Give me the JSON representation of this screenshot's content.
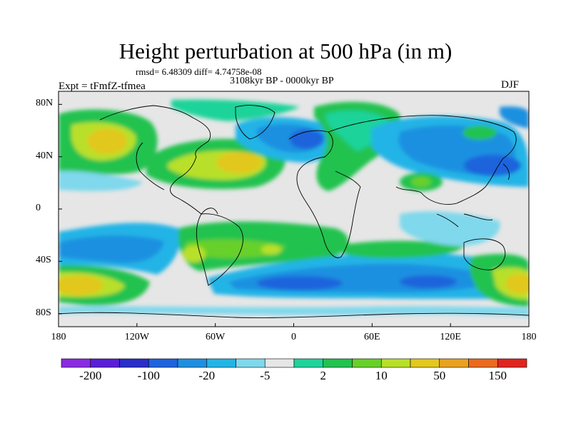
{
  "title": "Height perturbation at 500 hPa (in m)",
  "stats": "rmsd= 6.48309 diff= 4.74758e-08",
  "subtitle": "3108kyr BP - 0000kyr BP",
  "left_label": "Expt = tFmfZ-tfmea",
  "right_label": "DJF",
  "lat_axis": {
    "labels": [
      "80N",
      "40N",
      "0",
      "40S",
      "80S"
    ],
    "values": [
      80,
      40,
      0,
      -40,
      -80
    ]
  },
  "lon_axis": {
    "labels": [
      "180",
      "120W",
      "60W",
      "0",
      "60E",
      "120E",
      "180"
    ],
    "values": [
      -180,
      -120,
      -60,
      0,
      60,
      120,
      180
    ]
  },
  "colorbar": {
    "labels": [
      "-200",
      "-100",
      "-20",
      "-5",
      "2",
      "10",
      "50",
      "150"
    ],
    "colors": [
      "#8a2be2",
      "#5a1fd6",
      "#2b2ec8",
      "#1e63dc",
      "#1e90e0",
      "#23b4e6",
      "#7fd8ec",
      "#e6e6e6",
      "#1fd39a",
      "#22c24f",
      "#68d02a",
      "#b8e02a",
      "#e2c81f",
      "#e8a21f",
      "#ea6a1f",
      "#e0251f"
    ]
  }
}
